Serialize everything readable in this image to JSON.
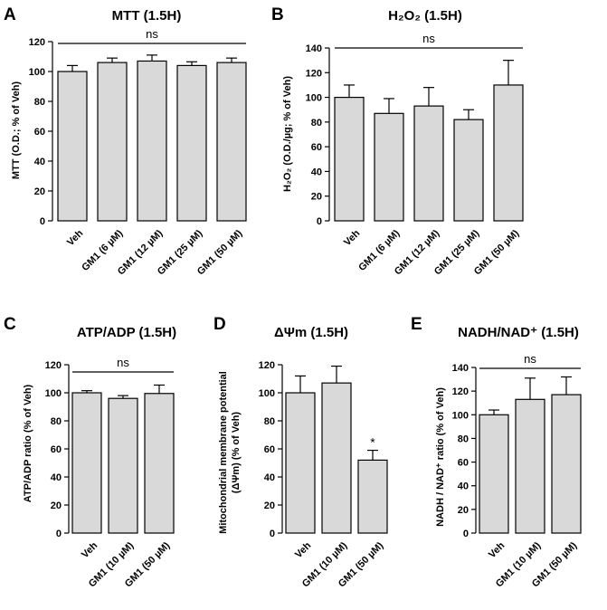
{
  "chart_data": [
    {
      "panel": "A",
      "type": "bar",
      "title": "MTT (1.5H)",
      "ylabel": "MTT (O.D.; % of Veh)",
      "xlabel": "",
      "categories": [
        "Veh",
        "GM1 (6 µM)",
        "GM1 (12 µM)",
        "GM1 (25 µM)",
        "GM1 (50 µM)"
      ],
      "values": [
        100,
        106,
        107,
        104,
        106
      ],
      "errors": [
        4,
        3,
        4,
        2.5,
        3
      ],
      "ylim": [
        0,
        120
      ],
      "yticks": [
        0,
        20,
        40,
        60,
        80,
        100,
        120
      ],
      "significance": {
        "label": "ns",
        "from": 0,
        "to": 4
      },
      "annotations": [],
      "bar_color": "#d9d9d9"
    },
    {
      "panel": "B",
      "type": "bar",
      "title": "H₂O₂ (1.5H)",
      "ylabel": "H₂O₂ (O.D./µg; % of Veh)",
      "xlabel": "",
      "categories": [
        "Veh",
        "GM1 (6 µM)",
        "GM1 (12 µM)",
        "GM1 (25 µM)",
        "GM1 (50 µM)"
      ],
      "values": [
        100,
        87,
        93,
        82,
        110
      ],
      "errors": [
        10,
        12,
        15,
        8,
        20
      ],
      "ylim": [
        0,
        140
      ],
      "yticks": [
        0,
        20,
        40,
        60,
        80,
        100,
        120,
        140
      ],
      "significance": {
        "label": "ns",
        "from": 0,
        "to": 4
      },
      "annotations": [],
      "bar_color": "#d9d9d9"
    },
    {
      "panel": "C",
      "type": "bar",
      "title": "ATP/ADP (1.5H)",
      "ylabel": "ATP/ADP ratio (% of Veh)",
      "xlabel": "",
      "categories": [
        "Veh",
        "GM1 (10 µM)",
        "GM1 (50 µM)"
      ],
      "values": [
        100,
        96,
        99.5
      ],
      "errors": [
        1.5,
        2,
        6
      ],
      "ylim": [
        0,
        120
      ],
      "yticks": [
        0,
        20,
        40,
        60,
        80,
        100,
        120
      ],
      "significance": {
        "label": "ns",
        "from": 0,
        "to": 2
      },
      "annotations": [],
      "bar_color": "#d9d9d9"
    },
    {
      "panel": "D",
      "type": "bar",
      "title": "ΔΨm (1.5H)",
      "ylabel": "Mitochondrial membrane potential (ΔΨm) (% of Veh)",
      "ylabel_lines": [
        "Mitochondrial membrane potential",
        "(ΔΨm) (% of Veh)"
      ],
      "xlabel": "",
      "categories": [
        "Veh",
        "GM1 (10 µM)",
        "GM1 (50 µM)"
      ],
      "values": [
        100,
        107,
        52
      ],
      "errors": [
        12,
        12,
        7
      ],
      "ylim": [
        0,
        120
      ],
      "yticks": [
        0,
        20,
        40,
        60,
        80,
        100,
        120
      ],
      "significance": null,
      "annotations": [
        {
          "label": "*",
          "index": 2
        }
      ],
      "bar_color": "#d9d9d9"
    },
    {
      "panel": "E",
      "type": "bar",
      "title": "NADH/NAD⁺ (1.5H)",
      "ylabel": "NADH / NAD⁺ ratio (% of Veh)",
      "xlabel": "",
      "categories": [
        "Veh",
        "GM1 (10 µM)",
        "GM1 (50 µM)"
      ],
      "values": [
        100,
        113,
        117
      ],
      "errors": [
        4,
        18,
        15
      ],
      "ylim": [
        0,
        140
      ],
      "yticks": [
        0,
        20,
        40,
        60,
        80,
        100,
        120,
        140
      ],
      "significance": {
        "label": "ns",
        "from": 0,
        "to": 2
      },
      "annotations": [],
      "bar_color": "#d9d9d9"
    }
  ]
}
